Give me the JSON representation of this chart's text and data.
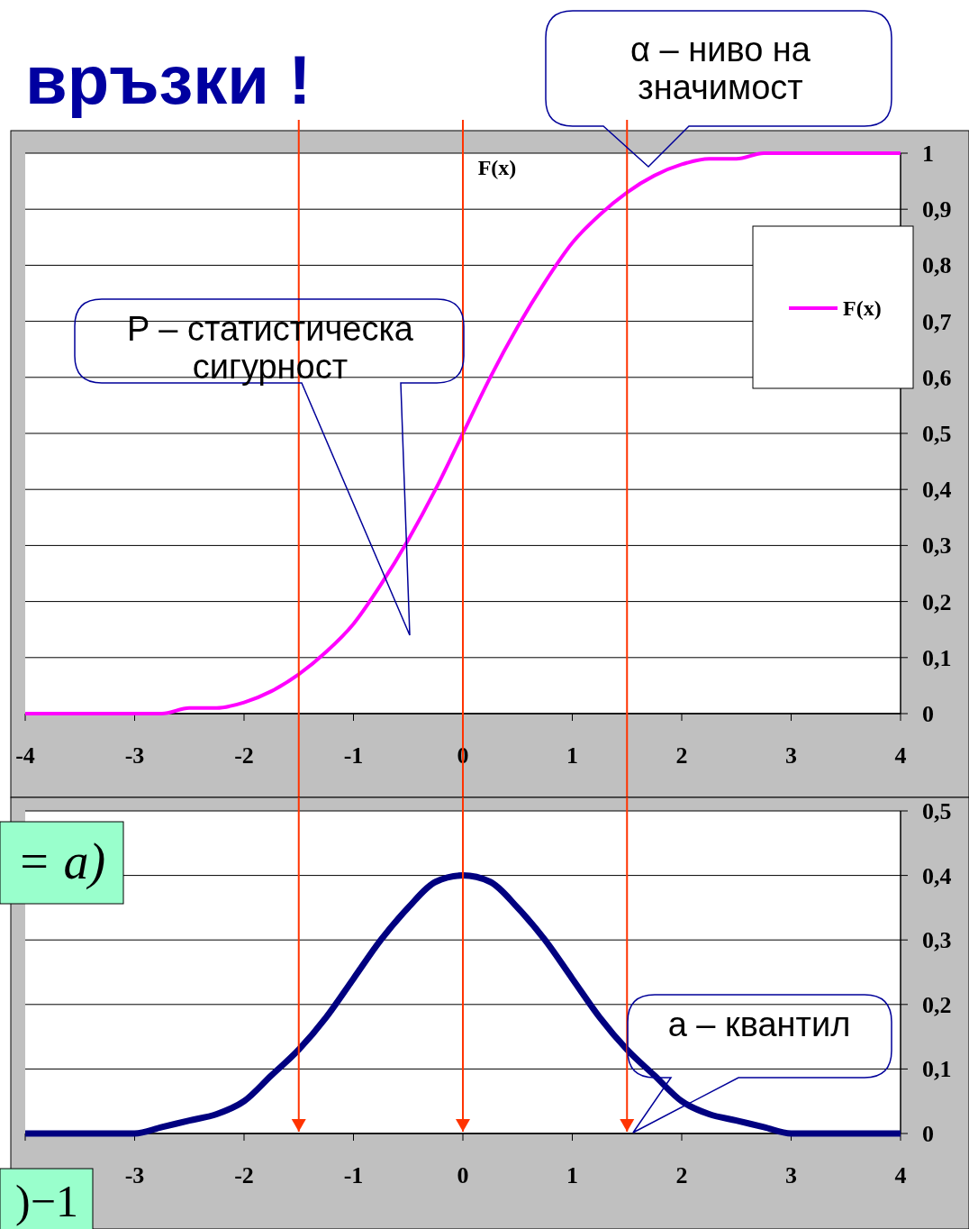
{
  "chart_data": [
    {
      "type": "line",
      "title": "F(x)",
      "x": [
        -4,
        -3.5,
        -3,
        -2.75,
        -2.5,
        -2.25,
        -2,
        -1.75,
        -1.5,
        -1.25,
        -1,
        -0.75,
        -0.5,
        -0.25,
        0,
        0.25,
        0.5,
        0.75,
        1,
        1.25,
        1.5,
        1.75,
        2,
        2.25,
        2.5,
        2.75,
        3,
        3.5,
        4
      ],
      "series": [
        {
          "name": "F(x)",
          "color": "#ff00ff",
          "values": [
            0,
            0,
            0,
            0,
            0.01,
            0.01,
            0.02,
            0.04,
            0.07,
            0.11,
            0.16,
            0.23,
            0.31,
            0.4,
            0.5,
            0.6,
            0.69,
            0.77,
            0.84,
            0.89,
            0.93,
            0.96,
            0.98,
            0.99,
            0.99,
            1,
            1,
            1,
            1
          ]
        }
      ],
      "xlim": [
        -4,
        4
      ],
      "xticks": [
        -4,
        -3,
        -2,
        -1,
        {
          "value": 0,
          "label": "0"
        },
        1,
        2,
        3,
        4
      ],
      "ylim": [
        0,
        1
      ],
      "yticks": [
        {
          "value": 0,
          "label": "0"
        },
        {
          "value": 0.1,
          "label": "0,1"
        },
        {
          "value": 0.2,
          "label": "0,2"
        },
        {
          "value": 0.3,
          "label": "0,3"
        },
        {
          "value": 0.4,
          "label": "0,4"
        },
        {
          "value": 0.5,
          "label": "0,5"
        },
        {
          "value": 0.6,
          "label": "0,6"
        },
        {
          "value": 0.7,
          "label": "0,7"
        },
        {
          "value": 0.8,
          "label": "0,8"
        },
        {
          "value": 0.9,
          "label": "0,9"
        },
        1
      ],
      "grid": "y",
      "legend": "right",
      "marker": "none",
      "line_style": "solid",
      "ref_lines": [
        {
          "axis": "x",
          "value": -1.5,
          "color": "#ff3300"
        },
        {
          "axis": "x",
          "value": 0,
          "color": "#ff3300"
        },
        {
          "axis": "x",
          "value": 1.5,
          "color": "#ff3300"
        }
      ],
      "annotations": [
        "връзки !",
        "α – ниво на\nзначимост",
        "P – статистическа\nсигурност"
      ]
    },
    {
      "type": "line",
      "x": [
        -4,
        -3.5,
        -3,
        -2.75,
        -2.5,
        -2.25,
        -2,
        -1.75,
        -1.5,
        -1.25,
        -1,
        -0.75,
        -0.5,
        -0.25,
        0,
        0.25,
        0.5,
        0.75,
        1,
        1.25,
        1.5,
        1.75,
        2,
        2.25,
        2.5,
        2.75,
        3,
        3.5,
        4
      ],
      "series": [
        {
          "color": "#000080",
          "values": [
            0,
            0,
            0,
            0.01,
            0.02,
            0.03,
            0.05,
            0.09,
            0.13,
            0.18,
            0.24,
            0.3,
            0.35,
            0.39,
            0.4,
            0.39,
            0.35,
            0.3,
            0.24,
            0.18,
            0.13,
            0.09,
            0.05,
            0.03,
            0.02,
            0.01,
            0,
            0,
            0
          ]
        }
      ],
      "xlim": [
        -4,
        4
      ],
      "xticks": [
        {
          "value": -4,
          "label": null
        },
        -3,
        -2,
        -1,
        0,
        1,
        2,
        3,
        4
      ],
      "ylim": [
        0,
        0.5
      ],
      "yticks": [
        0,
        {
          "value": 0.1,
          "label": "0,1"
        },
        {
          "value": 0.2,
          "label": "0,2"
        },
        {
          "value": 0.3,
          "label": "0,3"
        },
        {
          "value": 0.4,
          "label": "0,4"
        },
        {
          "value": 0.5,
          "label": "0,5"
        }
      ],
      "grid": "y",
      "legend": false,
      "marker": "none",
      "line_style": "solid",
      "ref_lines": [
        {
          "axis": "x",
          "value": -1.5,
          "color": "#ff3300"
        },
        {
          "axis": "x",
          "value": 0,
          "color": "#ff3300"
        },
        {
          "axis": "x",
          "value": 1.5,
          "color": "#ff3300"
        }
      ],
      "annotations": [
        "а – квантил",
        "= a)",
        ")−1"
      ]
    }
  ]
}
